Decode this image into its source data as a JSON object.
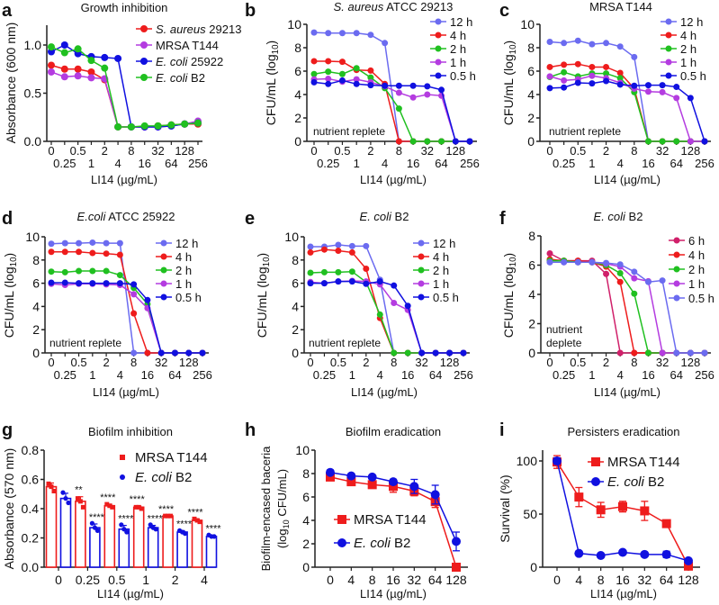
{
  "chart_data": [
    {
      "panel": "a",
      "type": "line",
      "title": "Growth inhibition",
      "xlabel": "LI14 (µg/mL)",
      "ylabel": "Absorbance (600 nm)",
      "categories": [
        "0",
        "0.25",
        "0.5",
        "1",
        "2",
        "4",
        "8",
        "16",
        "32",
        "64",
        "128",
        "256"
      ],
      "ylim": [
        0,
        1.2
      ],
      "yticks": [
        "0.0",
        "0.5",
        "1.0"
      ],
      "ytick_values": [
        0,
        0.5,
        1.0
      ],
      "legend": "top-right",
      "grid": false,
      "series": [
        {
          "name": "S. aureus 29213",
          "color": "#ee1c1c",
          "values": [
            0.79,
            0.75,
            0.75,
            0.72,
            0.64,
            0.15,
            0.15,
            0.15,
            0.16,
            0.17,
            0.18,
            0.18
          ]
        },
        {
          "name": "MRSA T144",
          "color": "#b43ce0",
          "values": [
            0.72,
            0.67,
            0.68,
            0.66,
            0.65,
            0.15,
            0.15,
            0.15,
            0.15,
            0.16,
            0.18,
            0.21
          ]
        },
        {
          "name": "E. coli 25922",
          "color": "#1010e0",
          "values": [
            0.93,
            1.0,
            0.91,
            0.88,
            0.87,
            0.86,
            0.15,
            0.15,
            0.15,
            0.16,
            0.18,
            0.19
          ]
        },
        {
          "name": "E. coli B2",
          "color": "#20c020",
          "values": [
            0.98,
            0.92,
            0.96,
            0.84,
            0.76,
            0.15,
            0.15,
            0.16,
            0.16,
            0.17,
            0.18,
            0.19
          ]
        }
      ]
    },
    {
      "panel": "b",
      "type": "line",
      "title": "S. aureus ATCC 29213",
      "xlabel": "LI14 (µg/mL)",
      "ylabel": "CFU/mL (log10)",
      "annotation": [
        "nutrient replete"
      ],
      "categories": [
        "0",
        "0.25",
        "0.5",
        "1",
        "2",
        "4",
        "8",
        "16",
        "32",
        "64",
        "128",
        "256"
      ],
      "ylim": [
        0,
        10
      ],
      "yticks": [
        "0",
        "2",
        "4",
        "6",
        "8",
        "10"
      ],
      "ytick_values": [
        0,
        2,
        4,
        6,
        8,
        10
      ],
      "legend": "top-right",
      "grid": false,
      "series": [
        {
          "name": "12 h",
          "color": "#6b6bf0",
          "values": [
            9.3,
            9.25,
            9.25,
            9.25,
            9.1,
            8.4,
            0,
            0,
            0,
            0,
            0,
            0
          ]
        },
        {
          "name": "4 h",
          "color": "#ee1c1c",
          "values": [
            6.85,
            6.85,
            6.8,
            6.1,
            6.05,
            4.9,
            0,
            0,
            0,
            0,
            0,
            0
          ]
        },
        {
          "name": "2 h",
          "color": "#20c020",
          "values": [
            5.75,
            5.95,
            5.75,
            6.25,
            5.45,
            4.55,
            2.8,
            0,
            0,
            0,
            0,
            0
          ]
        },
        {
          "name": "1 h",
          "color": "#b43ce0",
          "values": [
            5.3,
            5.35,
            5.1,
            5.3,
            5.05,
            4.7,
            4.15,
            3.75,
            4.0,
            3.9,
            0,
            0
          ]
        },
        {
          "name": "0.5 h",
          "color": "#1010e0",
          "values": [
            5.05,
            4.9,
            5.2,
            4.9,
            4.8,
            4.75,
            4.75,
            4.75,
            4.7,
            4.4,
            0,
            0
          ]
        }
      ]
    },
    {
      "panel": "c",
      "type": "line",
      "title": "MRSA T144",
      "xlabel": "LI14 (µg/mL)",
      "ylabel": "CFU/mL (log10)",
      "annotation": [
        "nutrient replete"
      ],
      "categories": [
        "0",
        "0.25",
        "0.5",
        "1",
        "2",
        "4",
        "8",
        "16",
        "32",
        "64",
        "128",
        "256"
      ],
      "ylim": [
        0,
        10
      ],
      "yticks": [
        "0",
        "2",
        "4",
        "6",
        "8",
        "10"
      ],
      "ytick_values": [
        0,
        2,
        4,
        6,
        8,
        10
      ],
      "legend": "top-right",
      "grid": false,
      "series": [
        {
          "name": "12 h",
          "color": "#6b6bf0",
          "values": [
            8.5,
            8.4,
            8.6,
            8.3,
            8.4,
            8.1,
            7.2,
            0,
            0,
            0,
            0,
            0
          ]
        },
        {
          "name": "4 h",
          "color": "#ee1c1c",
          "values": [
            6.35,
            6.55,
            6.6,
            6.35,
            6.35,
            5.85,
            4.5,
            0,
            0,
            0,
            0,
            0
          ]
        },
        {
          "name": "2 h",
          "color": "#20c020",
          "values": [
            5.5,
            5.9,
            5.55,
            5.8,
            5.8,
            5.4,
            4.2,
            0,
            0,
            0,
            0,
            0
          ]
        },
        {
          "name": "1 h",
          "color": "#b43ce0",
          "values": [
            5.55,
            5.2,
            5.3,
            5.6,
            5.4,
            5.0,
            4.5,
            4.25,
            4.2,
            3.7,
            0,
            0
          ]
        },
        {
          "name": "0.5 h",
          "color": "#1010e0",
          "values": [
            4.55,
            4.6,
            5.0,
            4.95,
            5.15,
            4.85,
            4.75,
            4.8,
            4.8,
            4.65,
            3.7,
            0
          ]
        }
      ]
    },
    {
      "panel": "d",
      "type": "line",
      "title": "E.coli ATCC 25922",
      "xlabel": "LI14 (µg/mL)",
      "ylabel": "CFU/mL (log10)",
      "annotation": [
        "nutrient replete"
      ],
      "categories": [
        "0",
        "0.25",
        "0.5",
        "1",
        "2",
        "4",
        "8",
        "16",
        "32",
        "64",
        "128",
        "256"
      ],
      "ylim": [
        0,
        10
      ],
      "yticks": [
        "0",
        "2",
        "4",
        "6",
        "8",
        "10"
      ],
      "ytick_values": [
        0,
        2,
        4,
        6,
        8,
        10
      ],
      "legend": "top-right",
      "grid": false,
      "series": [
        {
          "name": "12 h",
          "color": "#6b6bf0",
          "values": [
            9.4,
            9.45,
            9.45,
            9.5,
            9.45,
            9.45,
            0,
            0,
            0,
            0,
            0,
            0
          ]
        },
        {
          "name": "4 h",
          "color": "#ee1c1c",
          "values": [
            8.7,
            8.7,
            8.7,
            8.6,
            8.55,
            8.45,
            3.4,
            0,
            0,
            0,
            0,
            0
          ]
        },
        {
          "name": "2 h",
          "color": "#20c020",
          "values": [
            7.0,
            6.95,
            7.05,
            7.05,
            7.05,
            6.7,
            5.6,
            4.2,
            0,
            0,
            0,
            0
          ]
        },
        {
          "name": "1 h",
          "color": "#b43ce0",
          "values": [
            5.95,
            5.85,
            5.95,
            5.95,
            5.9,
            5.85,
            5.05,
            3.85,
            0,
            0,
            0,
            0
          ]
        },
        {
          "name": "0.5 h",
          "color": "#1010e0",
          "values": [
            6.05,
            6.05,
            6.0,
            6.0,
            6.0,
            6.0,
            5.9,
            4.55,
            0,
            0,
            0,
            0
          ]
        }
      ]
    },
    {
      "panel": "e",
      "type": "line",
      "title": "E. coli B2",
      "xlabel": "LI14 (µg/mL)",
      "ylabel": "CFU/mL (log10)",
      "annotation": [
        "nutrient replete"
      ],
      "categories": [
        "0",
        "0.25",
        "0.5",
        "1",
        "2",
        "4",
        "8",
        "16",
        "32",
        "64",
        "128",
        "256"
      ],
      "ylim": [
        0,
        10
      ],
      "yticks": [
        "0",
        "2",
        "4",
        "6",
        "8",
        "10"
      ],
      "ytick_values": [
        0,
        2,
        4,
        6,
        8,
        10
      ],
      "legend": "top-right",
      "grid": false,
      "series": [
        {
          "name": "12 h",
          "color": "#6b6bf0",
          "values": [
            9.15,
            9.15,
            9.3,
            9.2,
            9.2,
            6.3,
            0,
            0,
            0,
            0,
            0,
            0
          ]
        },
        {
          "name": "4 h",
          "color": "#ee1c1c",
          "values": [
            8.65,
            8.9,
            8.8,
            8.65,
            7.25,
            3.0,
            0,
            0,
            0,
            0,
            0,
            0
          ]
        },
        {
          "name": "2 h",
          "color": "#20c020",
          "values": [
            6.9,
            6.95,
            6.95,
            7.0,
            6.1,
            3.3,
            0,
            0,
            0,
            0,
            0,
            0
          ]
        },
        {
          "name": "1 h",
          "color": "#b43ce0",
          "values": [
            6.1,
            6.0,
            6.15,
            6.2,
            6.15,
            5.9,
            4.3,
            3.7,
            0,
            0,
            0,
            0
          ]
        },
        {
          "name": "0.5 h",
          "color": "#1010e0",
          "values": [
            6.0,
            6.0,
            6.15,
            6.15,
            5.95,
            6.15,
            5.8,
            4.05,
            0,
            0,
            0,
            0
          ]
        }
      ]
    },
    {
      "panel": "f",
      "type": "line",
      "title": "E. coli B2",
      "xlabel": "LI14 (µg/mL)",
      "ylabel": "CFU/mL (log10)",
      "annotation": [
        "nutrient",
        "deplete"
      ],
      "categories": [
        "0",
        "0.25",
        "0.5",
        "1",
        "2",
        "4",
        "8",
        "16",
        "32",
        "64",
        "128",
        "256"
      ],
      "ylim": [
        0,
        8
      ],
      "yticks": [
        "0",
        "2",
        "4",
        "6",
        "8"
      ],
      "ytick_values": [
        0,
        2,
        4,
        6,
        8
      ],
      "legend": "top-right",
      "grid": false,
      "series": [
        {
          "name": "6 h",
          "color": "#d0206a",
          "values": [
            6.8,
            6.3,
            6.3,
            6.3,
            5.4,
            0,
            0,
            0,
            0,
            0,
            0,
            0
          ]
        },
        {
          "name": "4 h",
          "color": "#ee1c1c",
          "values": [
            6.4,
            6.3,
            6.3,
            6.2,
            5.9,
            4.85,
            0,
            0,
            0,
            0,
            0,
            0
          ]
        },
        {
          "name": "2 h",
          "color": "#20c020",
          "values": [
            6.3,
            6.3,
            6.2,
            6.2,
            6.0,
            5.45,
            4.05,
            0,
            0,
            0,
            0,
            0
          ]
        },
        {
          "name": "1 h",
          "color": "#b43ce0",
          "values": [
            6.2,
            6.2,
            6.2,
            6.2,
            6.1,
            5.9,
            5.1,
            4.9,
            0,
            0,
            0,
            0
          ]
        },
        {
          "name": "0.5 h",
          "color": "#6b6bf0",
          "values": [
            6.2,
            6.2,
            6.2,
            6.2,
            6.15,
            6.05,
            5.55,
            4.85,
            4.95,
            0,
            0,
            0
          ]
        }
      ]
    },
    {
      "panel": "g",
      "type": "bar",
      "title": "Biofilm inhibition",
      "xlabel": "LI14 (µg/mL)",
      "ylabel": "Absorbance (570 nm)",
      "categories": [
        "0",
        "0.25",
        "0.5",
        "1",
        "2",
        "4"
      ],
      "ylim": [
        0,
        0.8
      ],
      "yticks": [
        "0.0",
        "0.2",
        "0.4",
        "0.6",
        "0.8"
      ],
      "ytick_values": [
        0,
        0.2,
        0.4,
        0.6,
        0.8
      ],
      "legend": "top-right",
      "grid": false,
      "series": [
        {
          "name": "MRSA T144",
          "color": "#ee1c1c",
          "marker": "square",
          "values": [
            0.55,
            0.45,
            0.42,
            0.41,
            0.35,
            0.32
          ],
          "points": [
            [
              0.57,
              0.55,
              0.52
            ],
            [
              0.47,
              0.45,
              0.41
            ],
            [
              0.43,
              0.42,
              0.41
            ],
            [
              0.41,
              0.41,
              0.4
            ],
            [
              0.35,
              0.35,
              0.35
            ],
            [
              0.33,
              0.32,
              0.31
            ]
          ],
          "significance": [
            "",
            "**",
            "****",
            "****",
            "****",
            "****"
          ]
        },
        {
          "name": "E. coli B2",
          "color": "#1010e0",
          "marker": "circle",
          "values": [
            0.47,
            0.27,
            0.26,
            0.27,
            0.24,
            0.21
          ],
          "points": [
            [
              0.51,
              0.47,
              0.44
            ],
            [
              0.3,
              0.27,
              0.25
            ],
            [
              0.29,
              0.26,
              0.24
            ],
            [
              0.29,
              0.27,
              0.26
            ],
            [
              0.25,
              0.24,
              0.23
            ],
            [
              0.22,
              0.21,
              0.21
            ]
          ],
          "significance": [
            "",
            "****",
            "****",
            "****",
            "****",
            "****"
          ]
        }
      ]
    },
    {
      "panel": "h",
      "type": "line",
      "title": "Biofilm eradication",
      "xlabel": "LI14 (µg/mL)",
      "ylabel": [
        "Biofilm-encased baceria",
        "(log10 CFU/mL)"
      ],
      "categories": [
        "0",
        "4",
        "8",
        "16",
        "32",
        "64",
        "128"
      ],
      "ylim": [
        0,
        10
      ],
      "yticks": [
        "0",
        "2",
        "4",
        "6",
        "8",
        "10"
      ],
      "ytick_values": [
        0,
        2,
        4,
        6,
        8,
        10
      ],
      "legend": "bottom-left",
      "grid": false,
      "series": [
        {
          "name": "MRSA T144",
          "color": "#ee1c1c",
          "marker": "square",
          "values": [
            7.7,
            7.3,
            7.05,
            6.9,
            6.5,
            5.6,
            0
          ],
          "errors": [
            0.3,
            0.2,
            0.2,
            0.5,
            0.4,
            0.5,
            0
          ]
        },
        {
          "name": "E. coli B2",
          "color": "#1010e0",
          "marker": "circle",
          "values": [
            8.1,
            7.8,
            7.7,
            7.3,
            6.9,
            6.2,
            2.2
          ],
          "errors": [
            0.1,
            0.1,
            0.1,
            0.2,
            0.6,
            0.8,
            0.8
          ]
        }
      ]
    },
    {
      "panel": "i",
      "type": "line",
      "title": "Persisters eradication",
      "xlabel": "LI14 (µg/mL)",
      "ylabel": "Survival (%)",
      "categories": [
        "0",
        "4",
        "8",
        "16",
        "32",
        "64",
        "128"
      ],
      "ylim": [
        0,
        110
      ],
      "yticks": [
        "0",
        "50",
        "100"
      ],
      "ytick_values": [
        0,
        50,
        100
      ],
      "legend": "top-right",
      "grid": false,
      "series": [
        {
          "name": "MRSA T144",
          "color": "#ee1c1c",
          "marker": "square",
          "values": [
            99,
            66,
            54,
            57,
            53,
            41,
            1
          ],
          "errors": [
            6,
            9,
            7,
            5,
            9,
            2,
            0
          ]
        },
        {
          "name": "E. coli B2",
          "color": "#1010e0",
          "marker": "circle",
          "values": [
            100,
            13,
            11,
            14,
            12,
            12,
            6
          ],
          "errors": [
            3,
            1,
            1,
            1,
            1,
            3,
            1
          ]
        }
      ]
    }
  ]
}
